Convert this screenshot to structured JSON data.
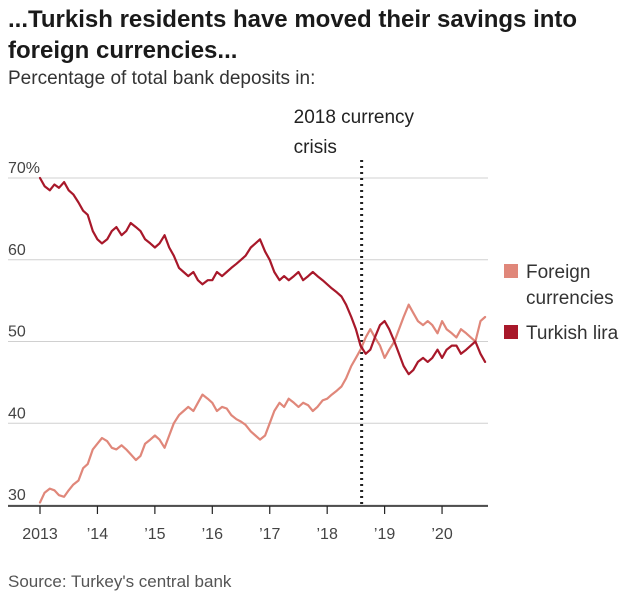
{
  "title": "...Turkish residents have moved their savings into foreign currencies...",
  "subtitle": "Percentage of total bank deposits in:",
  "source": "Source: Turkey's central bank",
  "colors": {
    "foreign": "#e0877a",
    "lira": "#a8182a",
    "grid": "#d0d0d0",
    "axis": "#222222"
  },
  "chart_data": {
    "type": "line",
    "ylim": [
      30,
      70
    ],
    "yticks": [
      30,
      40,
      50,
      60,
      70
    ],
    "ytick_labels": [
      "30",
      "40",
      "50",
      "60",
      "70%"
    ],
    "xlim": [
      2013.0,
      2020.8
    ],
    "xticks": [
      2013,
      2014,
      2015,
      2016,
      2017,
      2018,
      2019,
      2020
    ],
    "xtick_labels": [
      "2013",
      "’14",
      "’15",
      "’16",
      "’17",
      "’18",
      "’19",
      "’20"
    ],
    "annotation": {
      "x": 2018.6,
      "line1": "2018 currency",
      "line2": "crisis"
    },
    "legend_position": "right",
    "series": [
      {
        "name": "Foreign currencies",
        "key": "foreign",
        "x": [
          2013.0,
          2013.08,
          2013.17,
          2013.25,
          2013.33,
          2013.42,
          2013.5,
          2013.58,
          2013.67,
          2013.75,
          2013.83,
          2013.92,
          2014.0,
          2014.08,
          2014.17,
          2014.25,
          2014.33,
          2014.42,
          2014.5,
          2014.58,
          2014.67,
          2014.75,
          2014.83,
          2014.92,
          2015.0,
          2015.08,
          2015.17,
          2015.25,
          2015.33,
          2015.42,
          2015.5,
          2015.58,
          2015.67,
          2015.75,
          2015.83,
          2015.92,
          2016.0,
          2016.08,
          2016.17,
          2016.25,
          2016.33,
          2016.42,
          2016.5,
          2016.58,
          2016.67,
          2016.75,
          2016.83,
          2016.92,
          2017.0,
          2017.08,
          2017.17,
          2017.25,
          2017.33,
          2017.42,
          2017.5,
          2017.58,
          2017.67,
          2017.75,
          2017.83,
          2017.92,
          2018.0,
          2018.08,
          2018.17,
          2018.25,
          2018.33,
          2018.42,
          2018.5,
          2018.58,
          2018.67,
          2018.75,
          2018.83,
          2018.92,
          2019.0,
          2019.08,
          2019.17,
          2019.25,
          2019.33,
          2019.42,
          2019.5,
          2019.58,
          2019.67,
          2019.75,
          2019.83,
          2019.92,
          2020.0,
          2020.08,
          2020.17,
          2020.25,
          2020.33,
          2020.42,
          2020.5,
          2020.58,
          2020.67,
          2020.75
        ],
        "values": [
          30.3,
          31.5,
          32.0,
          31.8,
          31.2,
          31.0,
          31.8,
          32.5,
          33.0,
          34.5,
          35.0,
          36.8,
          37.5,
          38.2,
          37.8,
          37.0,
          36.8,
          37.3,
          36.8,
          36.2,
          35.5,
          36.0,
          37.5,
          38.0,
          38.5,
          38.0,
          37.0,
          38.5,
          40.0,
          41.0,
          41.5,
          42.0,
          41.5,
          42.5,
          43.5,
          43.0,
          42.5,
          41.5,
          42.0,
          41.8,
          41.0,
          40.5,
          40.2,
          39.8,
          39.0,
          38.5,
          38.0,
          38.5,
          40.0,
          41.5,
          42.5,
          42.0,
          43.0,
          42.5,
          42.0,
          42.5,
          42.2,
          41.5,
          42.0,
          42.8,
          43.0,
          43.5,
          44.0,
          44.5,
          45.5,
          47.0,
          48.0,
          49.0,
          50.5,
          51.5,
          50.5,
          49.5,
          48.0,
          49.0,
          50.0,
          51.5,
          53.0,
          54.5,
          53.5,
          52.5,
          52.0,
          52.5,
          52.0,
          51.0,
          52.5,
          51.5,
          51.0,
          50.5,
          51.5,
          51.0,
          50.5,
          50.0,
          52.5,
          53.0
        ]
      },
      {
        "name": "Turkish lira",
        "key": "lira",
        "x": [
          2013.0,
          2013.08,
          2013.17,
          2013.25,
          2013.33,
          2013.42,
          2013.5,
          2013.58,
          2013.67,
          2013.75,
          2013.83,
          2013.92,
          2014.0,
          2014.08,
          2014.17,
          2014.25,
          2014.33,
          2014.42,
          2014.5,
          2014.58,
          2014.67,
          2014.75,
          2014.83,
          2014.92,
          2015.0,
          2015.08,
          2015.17,
          2015.25,
          2015.33,
          2015.42,
          2015.5,
          2015.58,
          2015.67,
          2015.75,
          2015.83,
          2015.92,
          2016.0,
          2016.08,
          2016.17,
          2016.25,
          2016.33,
          2016.42,
          2016.5,
          2016.58,
          2016.67,
          2016.75,
          2016.83,
          2016.92,
          2017.0,
          2017.08,
          2017.17,
          2017.25,
          2017.33,
          2017.42,
          2017.5,
          2017.58,
          2017.67,
          2017.75,
          2017.83,
          2017.92,
          2018.0,
          2018.08,
          2018.17,
          2018.25,
          2018.33,
          2018.42,
          2018.5,
          2018.58,
          2018.67,
          2018.75,
          2018.83,
          2018.92,
          2019.0,
          2019.08,
          2019.17,
          2019.25,
          2019.33,
          2019.42,
          2019.5,
          2019.58,
          2019.67,
          2019.75,
          2019.83,
          2019.92,
          2020.0,
          2020.08,
          2020.17,
          2020.25,
          2020.33,
          2020.42,
          2020.5,
          2020.58,
          2020.67,
          2020.75
        ],
        "values": [
          70.0,
          69.0,
          68.5,
          69.2,
          68.8,
          69.5,
          68.5,
          68.0,
          67.0,
          66.0,
          65.5,
          63.5,
          62.5,
          62.0,
          62.5,
          63.5,
          64.0,
          63.0,
          63.5,
          64.5,
          64.0,
          63.5,
          62.5,
          62.0,
          61.5,
          62.0,
          63.0,
          61.5,
          60.5,
          59.0,
          58.5,
          58.0,
          58.5,
          57.5,
          57.0,
          57.5,
          57.5,
          58.5,
          58.0,
          58.5,
          59.0,
          59.5,
          60.0,
          60.5,
          61.5,
          62.0,
          62.5,
          61.0,
          60.0,
          58.5,
          57.5,
          58.0,
          57.5,
          58.0,
          58.5,
          57.5,
          58.0,
          58.5,
          58.0,
          57.5,
          57.0,
          56.5,
          56.0,
          55.5,
          54.5,
          53.0,
          51.5,
          49.5,
          48.5,
          49.0,
          50.5,
          52.0,
          52.5,
          51.5,
          50.0,
          48.5,
          47.0,
          46.0,
          46.5,
          47.5,
          48.0,
          47.5,
          48.0,
          49.0,
          48.0,
          49.0,
          49.5,
          49.5,
          48.5,
          49.0,
          49.5,
          50.0,
          48.5,
          47.5
        ]
      }
    ]
  }
}
